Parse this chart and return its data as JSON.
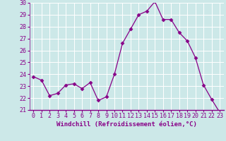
{
  "x": [
    0,
    1,
    2,
    3,
    4,
    5,
    6,
    7,
    8,
    9,
    10,
    11,
    12,
    13,
    14,
    15,
    16,
    17,
    18,
    19,
    20,
    21,
    22,
    23
  ],
  "y": [
    23.8,
    23.5,
    22.2,
    22.4,
    23.1,
    23.2,
    22.8,
    23.3,
    21.8,
    22.1,
    24.0,
    26.6,
    27.8,
    29.0,
    29.3,
    30.1,
    28.6,
    28.6,
    27.5,
    26.8,
    25.4,
    23.1,
    21.9,
    20.8
  ],
  "line_color": "#880088",
  "marker": "D",
  "marker_size": 2.5,
  "bg_color": "#cce8e8",
  "grid_color": "#ffffff",
  "xlabel": "Windchill (Refroidissement éolien,°C)",
  "ylim": [
    21,
    30
  ],
  "xlim_min": -0.5,
  "xlim_max": 23.5,
  "yticks": [
    21,
    22,
    23,
    24,
    25,
    26,
    27,
    28,
    29,
    30
  ],
  "xtick_labels": [
    "0",
    "1",
    "2",
    "3",
    "4",
    "5",
    "6",
    "7",
    "8",
    "9",
    "10",
    "11",
    "12",
    "13",
    "14",
    "15",
    "16",
    "17",
    "18",
    "19",
    "20",
    "21",
    "22",
    "23"
  ],
  "tick_color": "#880088",
  "xlabel_color": "#880088",
  "font": "monospace",
  "tick_fontsize": 6,
  "xlabel_fontsize": 6.5
}
